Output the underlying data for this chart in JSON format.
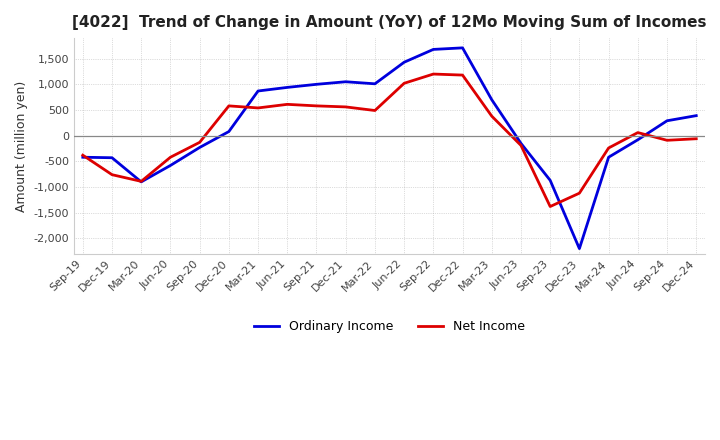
{
  "title": "[4022]  Trend of Change in Amount (YoY) of 12Mo Moving Sum of Incomes",
  "ylabel": "Amount (million yen)",
  "ylim": [
    -2300,
    1900
  ],
  "yticks": [
    -2000,
    -1500,
    -1000,
    -500,
    0,
    500,
    1000,
    1500
  ],
  "background_color": "#ffffff",
  "plot_bg_color": "#ffffff",
  "grid_color": "#aaaaaa",
  "ordinary_color": "#0000dd",
  "net_color": "#dd0000",
  "x_labels": [
    "Sep-19",
    "Dec-19",
    "Mar-20",
    "Jun-20",
    "Sep-20",
    "Dec-20",
    "Mar-21",
    "Jun-21",
    "Sep-21",
    "Dec-21",
    "Mar-22",
    "Jun-22",
    "Sep-22",
    "Dec-22",
    "Mar-23",
    "Jun-23",
    "Sep-23",
    "Dec-23",
    "Mar-24",
    "Jun-24",
    "Sep-24",
    "Dec-24"
  ],
  "ordinary_income": [
    -420,
    -430,
    -900,
    -580,
    -230,
    80,
    870,
    940,
    1000,
    1050,
    1010,
    1430,
    1680,
    1710,
    700,
    -150,
    -870,
    -2200,
    -420,
    -80,
    290,
    390
  ],
  "net_income": [
    -380,
    -760,
    -890,
    -420,
    -130,
    580,
    540,
    610,
    580,
    560,
    490,
    1020,
    1200,
    1180,
    380,
    -190,
    -1380,
    -1120,
    -240,
    60,
    -90,
    -60
  ],
  "legend_ordinary": "Ordinary Income",
  "legend_net": "Net Income"
}
